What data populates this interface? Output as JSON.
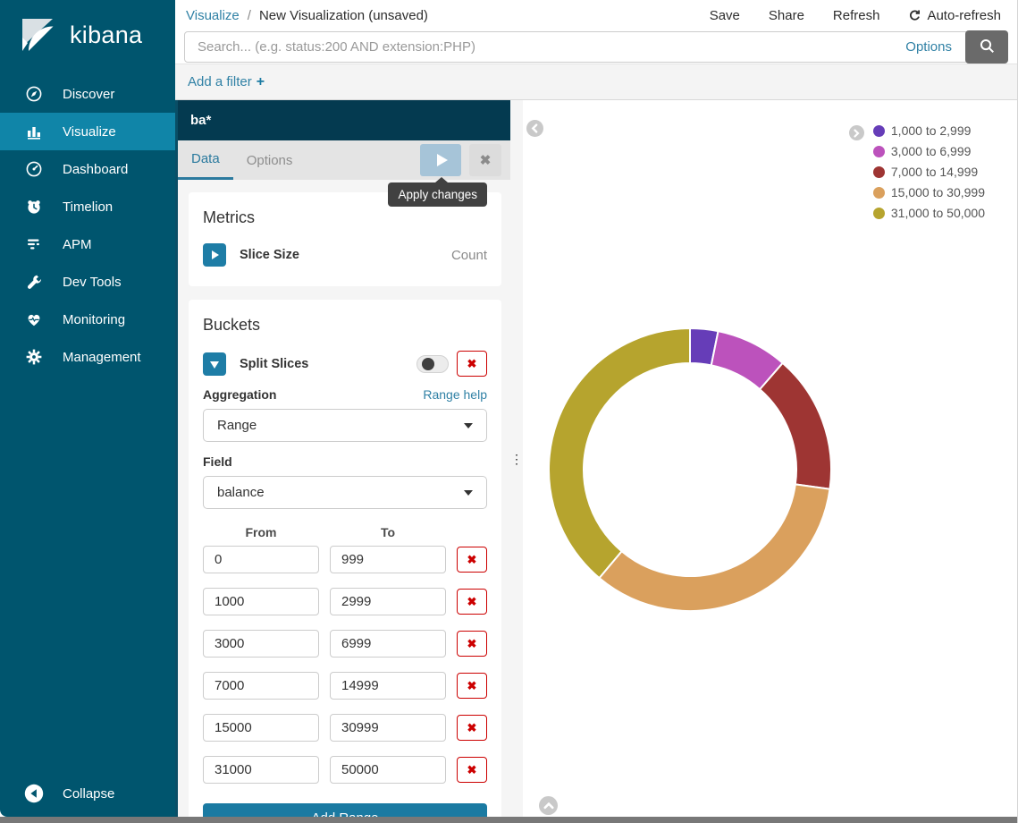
{
  "colors": {
    "accent": "#1a7aa2",
    "link": "#3081a5",
    "danger": "#cc0000",
    "sidebar_bg": "#00556e",
    "sidebar_active_bg": "#1085a8",
    "panel_header_bg": "#043a50"
  },
  "sidebar": {
    "logo_text": "kibana",
    "items": [
      {
        "label": "Discover",
        "icon": "compass-icon",
        "active": false
      },
      {
        "label": "Visualize",
        "icon": "bar-chart-icon",
        "active": true
      },
      {
        "label": "Dashboard",
        "icon": "dashboard-icon",
        "active": false
      },
      {
        "label": "Timelion",
        "icon": "timelion-icon",
        "active": false
      },
      {
        "label": "APM",
        "icon": "apm-icon",
        "active": false
      },
      {
        "label": "Dev Tools",
        "icon": "wrench-icon",
        "active": false
      },
      {
        "label": "Monitoring",
        "icon": "heartbeat-icon",
        "active": false
      },
      {
        "label": "Management",
        "icon": "gear-icon",
        "active": false
      }
    ],
    "collapse_label": "Collapse"
  },
  "topbar": {
    "breadcrumb_section": "Visualize",
    "breadcrumb_separator": "/",
    "breadcrumb_page": "New Visualization (unsaved)",
    "actions": [
      "Save",
      "Share",
      "Refresh",
      "Auto-refresh"
    ],
    "search_placeholder": "Search... (e.g. status:200 AND extension:PHP)",
    "options_label": "Options",
    "add_filter_label": "Add a filter",
    "add_filter_plus": "+"
  },
  "editor": {
    "index_pattern": "ba*",
    "tabs": [
      {
        "label": "Data",
        "active": true
      },
      {
        "label": "Options",
        "active": false
      }
    ],
    "apply_tooltip": "Apply changes",
    "close_glyph": "✖",
    "metrics_heading": "Metrics",
    "metric_label": "Slice Size",
    "metric_value": "Count",
    "buckets_heading": "Buckets",
    "bucket_type_label": "Split Slices",
    "aggregation_label": "Aggregation",
    "range_help_label": "Range help",
    "aggregation_value": "Range",
    "field_label": "Field",
    "field_value": "balance",
    "from_label": "From",
    "to_label": "To",
    "ranges": [
      {
        "from": "0",
        "to": "999"
      },
      {
        "from": "1000",
        "to": "2999"
      },
      {
        "from": "3000",
        "to": "6999"
      },
      {
        "from": "7000",
        "to": "14999"
      },
      {
        "from": "15000",
        "to": "30999"
      },
      {
        "from": "31000",
        "to": "50000"
      }
    ],
    "remove_glyph": "✖",
    "add_range_label": "Add Range"
  },
  "chart_data": {
    "type": "pie",
    "donut": true,
    "title": "",
    "labels": [
      "1,000 to 2,999",
      "3,000 to 6,999",
      "7,000 to 14,999",
      "15,000 to 30,999",
      "31,000 to 50,000"
    ],
    "values_pct": [
      3.2,
      8.2,
      15.8,
      33.9,
      38.9
    ],
    "colors": [
      "#663db8",
      "#bc52bc",
      "#9e3533",
      "#daa05d",
      "#b6a42e"
    ],
    "legend_position": "top-right",
    "inner_radius_ratio": 0.75,
    "start_angle_deg": 0
  }
}
